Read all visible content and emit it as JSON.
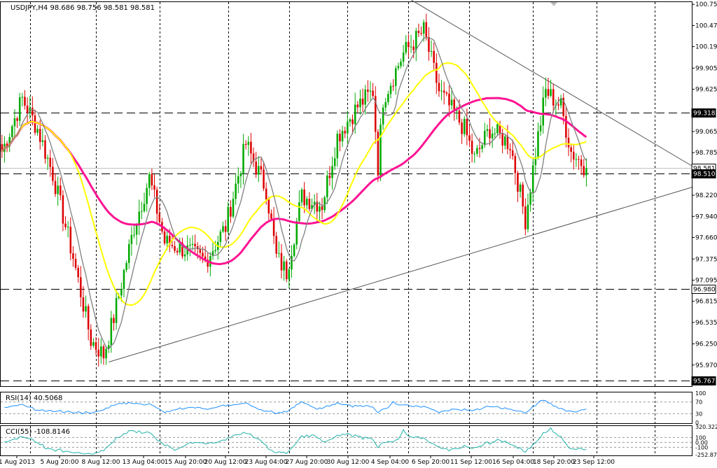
{
  "chart_data": {
    "type": "candlestick",
    "symbol_header": "USDJPY,H4  98.686 98.756 98.581 98.581",
    "price_axis_ticks": [
      "100.750",
      "100.470",
      "100.190",
      "99.905",
      "99.625",
      "99.065",
      "98.785",
      "98.220",
      "97.940",
      "97.660",
      "97.375",
      "97.095",
      "96.815",
      "96.535",
      "96.250",
      "95.970"
    ],
    "price_ylim": [
      95.69,
      100.78
    ],
    "highlighted_levels": [
      {
        "label": "99.318",
        "value": 99.318,
        "color": "#000000"
      },
      {
        "label": "98.581",
        "value": 98.581,
        "color": "#000000"
      },
      {
        "label": "98.510",
        "value": 98.51,
        "color": "#000000"
      },
      {
        "label": "96.980",
        "value": 96.98,
        "color": "#000000"
      },
      {
        "label": "95.767",
        "value": 95.767,
        "color": "#000000"
      }
    ],
    "x_tick_labels": [
      "1 Aug 2013",
      "5 Aug 20:00",
      "8 Aug 12:00",
      "13 Aug 04:00",
      "15 Aug 20:00",
      "20 Aug 12:00",
      "23 Aug 04:00",
      "27 Aug 20:00",
      "30 Aug 12:00",
      "4 Sep 04:00",
      "6 Sep 20:00",
      "11 Sep 12:00",
      "16 Sep 04:00",
      "18 Sep 20:00",
      "23 Sep 12:00"
    ],
    "bull_color": "#00aa00",
    "bear_color": "#dd0000",
    "price_anchors": [
      [
        0,
        98.8
      ],
      [
        8,
        99.5
      ],
      [
        14,
        99.1
      ],
      [
        20,
        98.5
      ],
      [
        28,
        97.4
      ],
      [
        35,
        96.3
      ],
      [
        40,
        96.1
      ],
      [
        44,
        96.6
      ],
      [
        52,
        97.8
      ],
      [
        58,
        98.45
      ],
      [
        64,
        97.6
      ],
      [
        72,
        97.5
      ],
      [
        80,
        97.35
      ],
      [
        88,
        97.8
      ],
      [
        96,
        98.9
      ],
      [
        104,
        98.3
      ],
      [
        108,
        97.4
      ],
      [
        112,
        97.2
      ],
      [
        118,
        98.2
      ],
      [
        126,
        98.1
      ],
      [
        132,
        99.0
      ],
      [
        140,
        99.4
      ],
      [
        146,
        99.6
      ],
      [
        148,
        98.6
      ],
      [
        150,
        99.5
      ],
      [
        158,
        100.1
      ],
      [
        166,
        100.4
      ],
      [
        172,
        99.6
      ],
      [
        176,
        99.4
      ],
      [
        182,
        99.1
      ],
      [
        186,
        98.7
      ],
      [
        192,
        99.1
      ],
      [
        200,
        98.9
      ],
      [
        206,
        97.9
      ],
      [
        210,
        98.8
      ],
      [
        214,
        99.6
      ],
      [
        220,
        99.4
      ],
      [
        224,
        98.8
      ],
      [
        230,
        98.581
      ]
    ],
    "ma_colors": {
      "fast": "#808080",
      "mid": "#ffff00",
      "slow": "#ff1493"
    },
    "trend_lines": [
      {
        "label": "upper",
        "from": {
          "bar": 161,
          "price": 100.81
        },
        "to": {
          "bar": 272,
          "price": 98.6
        }
      },
      {
        "label": "lower",
        "from": {
          "bar": 42,
          "price": 96.01
        },
        "to": {
          "bar": 272,
          "price": 98.33
        }
      }
    ],
    "rsi": {
      "label": "RSI(14) 40.5068",
      "axis_labels": [
        "100",
        "70",
        "30",
        "0"
      ],
      "levels": [
        100,
        70,
        30,
        0
      ],
      "color": "#1e90ff"
    },
    "cci": {
      "label": "CCI(55) -108.8146",
      "axis_labels": [
        "320.322",
        "100",
        "0.00",
        "-100",
        "-252.875"
      ],
      "levels": [
        320.322,
        100,
        0,
        -100,
        -252.875
      ],
      "color": "#20b2aa"
    }
  }
}
